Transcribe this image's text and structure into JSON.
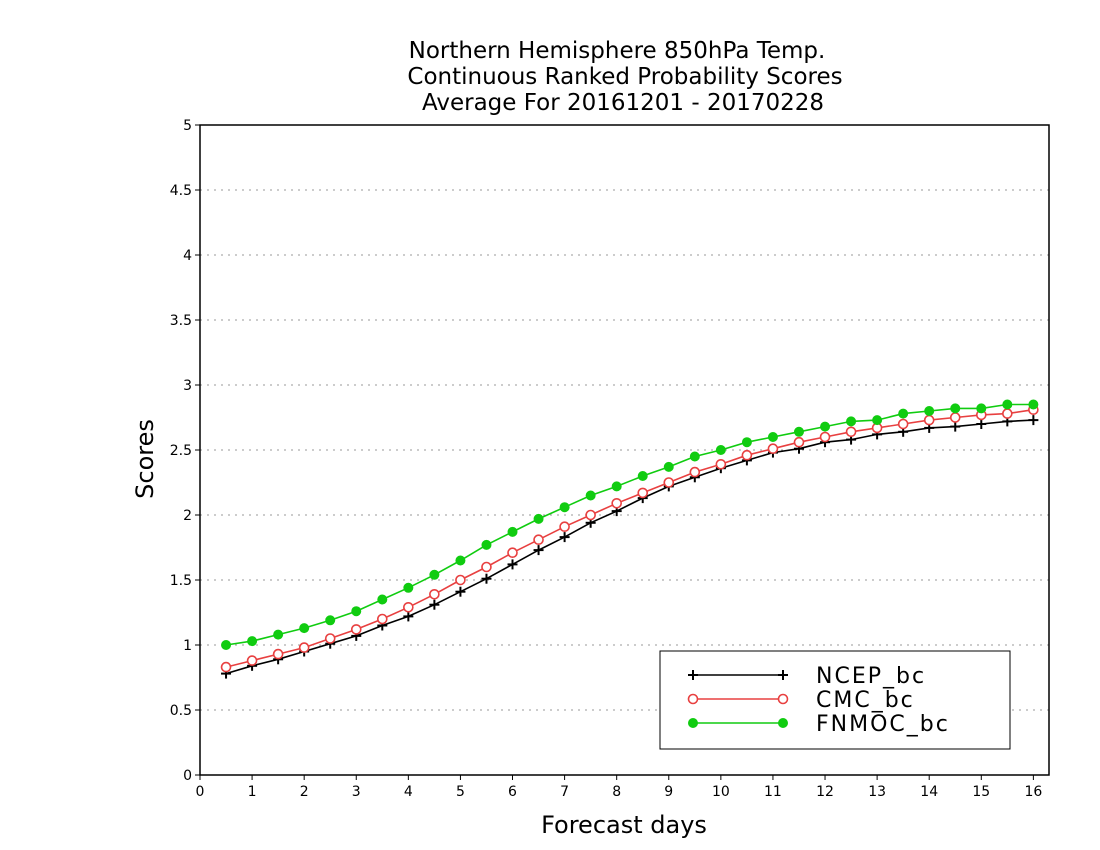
{
  "chart_data": {
    "type": "line",
    "title_lines": [
      "Northern Hemisphere 850hPa Temp.",
      "Continuous Ranked Probability Scores",
      "Average For 20161201 - 20170228"
    ],
    "xlabel": "Forecast days",
    "ylabel": "Scores",
    "xlim": [
      0,
      16.3
    ],
    "ylim": [
      0,
      5
    ],
    "xticks": [
      0,
      1,
      2,
      3,
      4,
      5,
      6,
      7,
      8,
      9,
      10,
      11,
      12,
      13,
      14,
      15,
      16
    ],
    "yticks": [
      0,
      0.5,
      1,
      1.5,
      2,
      2.5,
      3,
      3.5,
      4,
      4.5,
      5
    ],
    "grid": "horizontal-dotted",
    "legend_position": "bottom-right",
    "x": [
      0.5,
      1,
      1.5,
      2,
      2.5,
      3,
      3.5,
      4,
      4.5,
      5,
      5.5,
      6,
      6.5,
      7,
      7.5,
      8,
      8.5,
      9,
      9.5,
      10,
      10.5,
      11,
      11.5,
      12,
      12.5,
      13,
      13.5,
      14,
      14.5,
      15,
      15.5,
      16
    ],
    "series": [
      {
        "name": "NCEP_bc",
        "color": "#000000",
        "marker": "plus",
        "values": [
          0.78,
          0.84,
          0.89,
          0.95,
          1.01,
          1.07,
          1.15,
          1.22,
          1.31,
          1.41,
          1.51,
          1.62,
          1.73,
          1.83,
          1.94,
          2.03,
          2.13,
          2.22,
          2.29,
          2.36,
          2.42,
          2.48,
          2.51,
          2.56,
          2.58,
          2.62,
          2.64,
          2.67,
          2.68,
          2.7,
          2.72,
          2.73
        ]
      },
      {
        "name": "CMC_bc",
        "color": "#e84040",
        "marker": "open-circle",
        "values": [
          0.83,
          0.88,
          0.93,
          0.98,
          1.05,
          1.12,
          1.2,
          1.29,
          1.39,
          1.5,
          1.6,
          1.71,
          1.81,
          1.91,
          2.0,
          2.09,
          2.17,
          2.25,
          2.33,
          2.39,
          2.46,
          2.51,
          2.56,
          2.6,
          2.64,
          2.67,
          2.7,
          2.73,
          2.75,
          2.77,
          2.78,
          2.81
        ]
      },
      {
        "name": "FNMOC_bc",
        "color": "#10cc10",
        "marker": "filled-circle",
        "values": [
          1.0,
          1.03,
          1.08,
          1.13,
          1.19,
          1.26,
          1.35,
          1.44,
          1.54,
          1.65,
          1.77,
          1.87,
          1.97,
          2.06,
          2.15,
          2.22,
          2.3,
          2.37,
          2.45,
          2.5,
          2.56,
          2.6,
          2.64,
          2.68,
          2.72,
          2.73,
          2.78,
          2.8,
          2.82,
          2.82,
          2.85,
          2.85
        ]
      }
    ]
  }
}
